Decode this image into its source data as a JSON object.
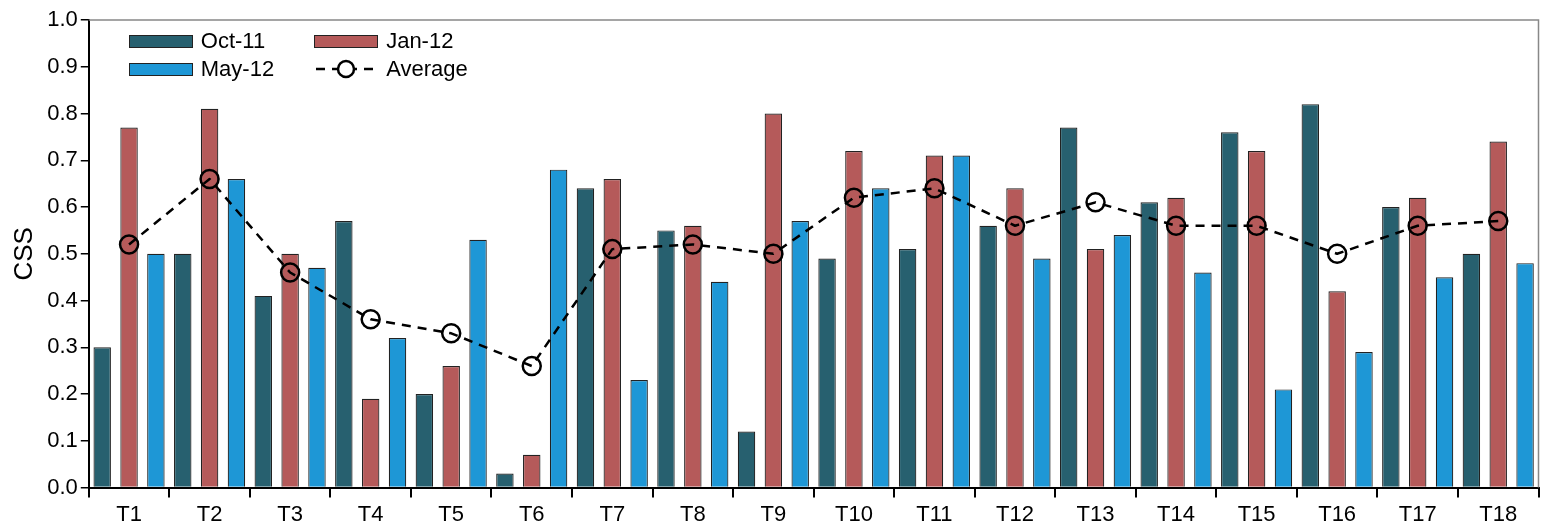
{
  "chart_data": {
    "type": "bar",
    "ylabel": "CSS",
    "categories": [
      "T1",
      "T2",
      "T3",
      "T4",
      "T5",
      "T6",
      "T7",
      "T8",
      "T9",
      "T10",
      "T11",
      "T12",
      "T13",
      "T14",
      "T15",
      "T16",
      "T17",
      "T18"
    ],
    "series": [
      {
        "name": "Oct-11",
        "color": "#27606f",
        "values": [
          0.3,
          0.5,
          0.41,
          0.57,
          0.2,
          0.03,
          0.64,
          0.55,
          0.12,
          0.49,
          0.51,
          0.56,
          0.77,
          0.61,
          0.76,
          0.82,
          0.6,
          0.5
        ]
      },
      {
        "name": "Jan-12",
        "color": "#b55a5a",
        "values": [
          0.77,
          0.81,
          0.5,
          0.19,
          0.26,
          0.07,
          0.66,
          0.56,
          0.8,
          0.72,
          0.71,
          0.64,
          0.51,
          0.62,
          0.72,
          0.42,
          0.62,
          0.74
        ]
      },
      {
        "name": "May-12",
        "color": "#1e97d6",
        "values": [
          0.5,
          0.66,
          0.47,
          0.32,
          0.53,
          0.68,
          0.23,
          0.44,
          0.57,
          0.64,
          0.71,
          0.49,
          0.54,
          0.46,
          0.21,
          0.29,
          0.45,
          0.48
        ]
      },
      {
        "name": "Average",
        "type": "line",
        "color": "#000000",
        "marker": "circle",
        "line_style": "dashed",
        "values": [
          0.52,
          0.66,
          0.46,
          0.36,
          0.33,
          0.26,
          0.51,
          0.52,
          0.5,
          0.62,
          0.64,
          0.56,
          0.61,
          0.56,
          0.56,
          0.5,
          0.56,
          0.57
        ]
      }
    ],
    "ylim": [
      0,
      1
    ],
    "yticks": [
      {
        "value": 0,
        "label": "0.0"
      },
      {
        "value": 0.1,
        "label": "0.1"
      },
      {
        "value": 0.2,
        "label": "0.2"
      },
      {
        "value": 0.3,
        "label": "0.3"
      },
      {
        "value": 0.4,
        "label": "0.4"
      },
      {
        "value": 0.5,
        "label": "0.5"
      },
      {
        "value": 0.6,
        "label": "0.6"
      },
      {
        "value": 0.7,
        "label": "0.7"
      },
      {
        "value": 0.8,
        "label": "0.8"
      },
      {
        "value": 0.9,
        "label": "0.9"
      },
      {
        "value": 1,
        "label": "1.0"
      }
    ],
    "grid": false,
    "legend": "top left"
  }
}
